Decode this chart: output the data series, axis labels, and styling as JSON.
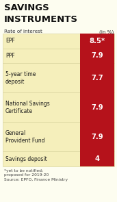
{
  "title_line1": "SAVINGS",
  "title_line2": "INSTRUMENTS",
  "subtitle_left": "Rate of interest",
  "subtitle_right": "(in %)",
  "rows": [
    {
      "label": "EPF",
      "value": "8.5*",
      "lines": 1
    },
    {
      "label": "PPF",
      "value": "7.9",
      "lines": 1
    },
    {
      "label": "5-year time\ndeposit",
      "value": "7.7",
      "lines": 2
    },
    {
      "label": "National Savings\nCertificate",
      "value": "7.9",
      "lines": 2
    },
    {
      "label": "General\nProvident Fund",
      "value": "7.9",
      "lines": 2
    },
    {
      "label": "Savings deposit",
      "value": "4",
      "lines": 1
    }
  ],
  "footnote": "*yet to be notified;\nproposed for 2019-20\nSource: EPFO, Finance Ministry",
  "bg_color": "#fdfdf0",
  "row_bg_color": "#f5efbb",
  "val_bg_color": "#b5121b",
  "val_text_color": "#ffffff",
  "label_color": "#1a1a1a",
  "title_color": "#111111",
  "subtitle_color": "#333333",
  "footnote_color": "#444444",
  "divider_color": "#d4ce96",
  "title_fontsize": 9.5,
  "subtitle_fontsize": 5.2,
  "label_fontsize": 5.5,
  "value_fontsize": 7.2,
  "footnote_fontsize": 4.3
}
